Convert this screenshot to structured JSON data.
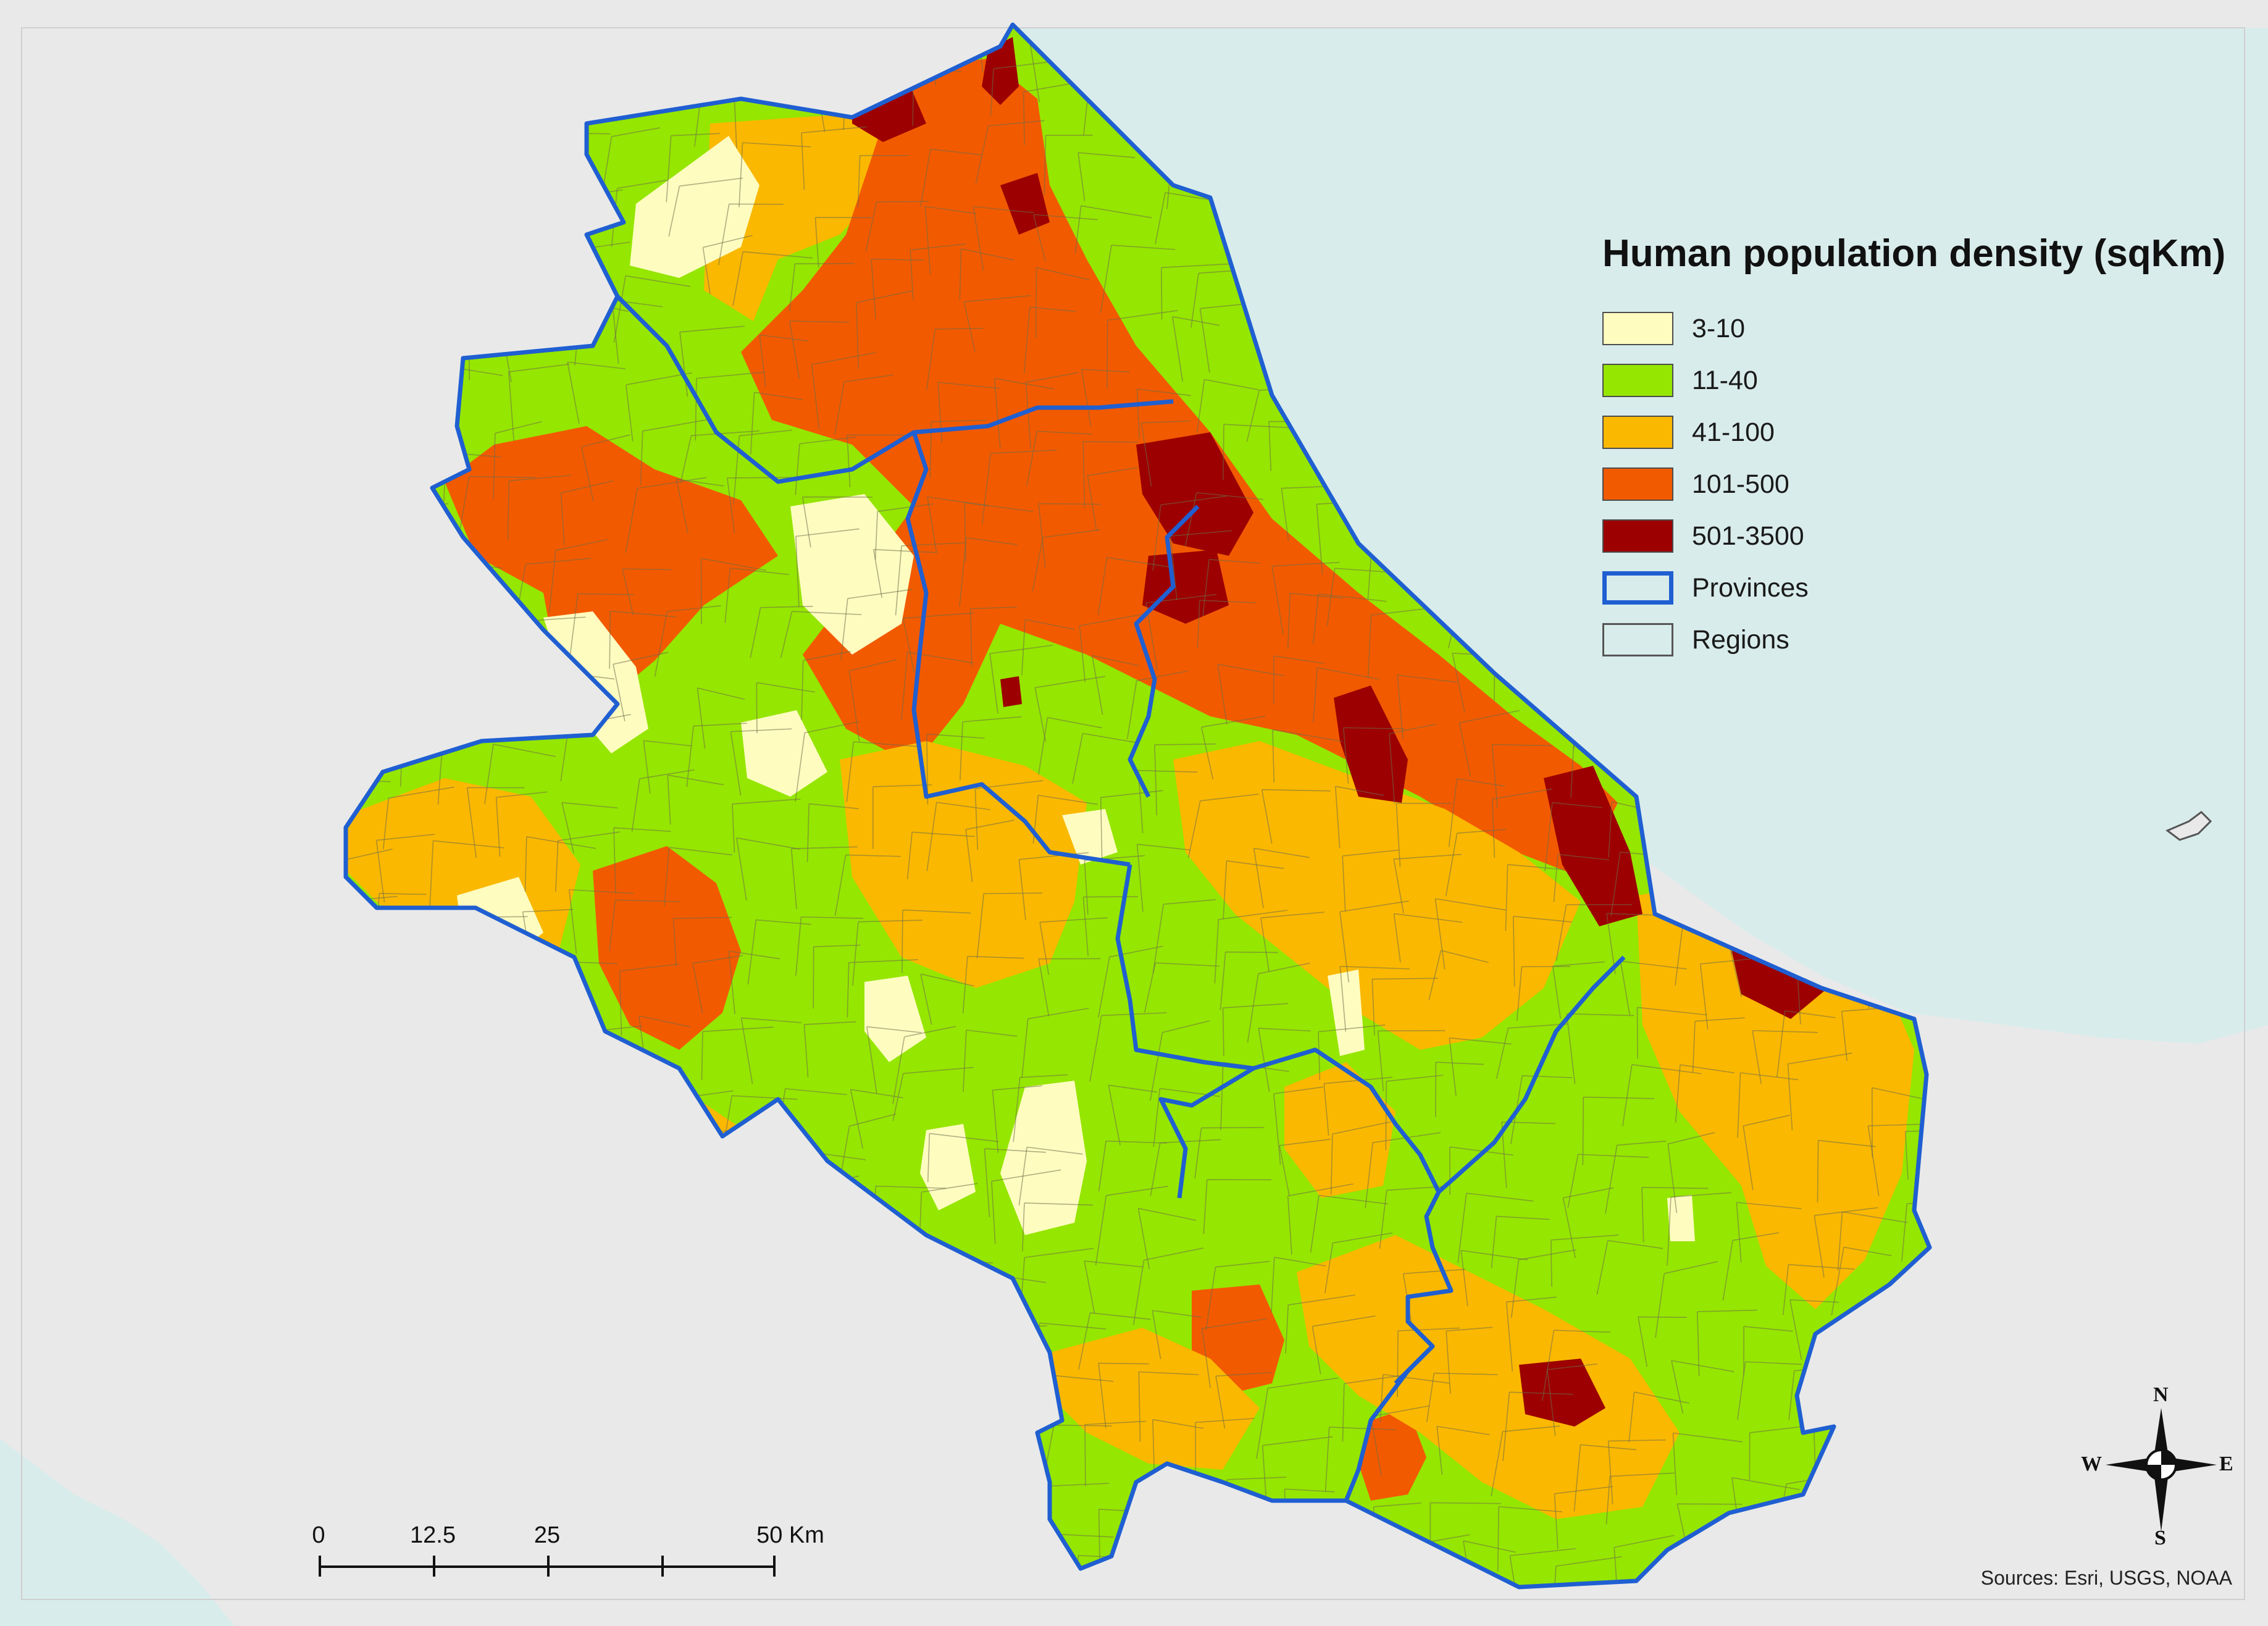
{
  "legend": {
    "title": "Human population density (sqKm)",
    "items": [
      {
        "label": "3-10",
        "color": "#fffcc0"
      },
      {
        "label": "11-40",
        "color": "#95e600"
      },
      {
        "label": "41-100",
        "color": "#fbb800"
      },
      {
        "label": "101-500",
        "color": "#f25a00"
      },
      {
        "label": "501-3500",
        "color": "#9c0000"
      },
      {
        "label": "Provinces",
        "color": "#1f5fd1"
      },
      {
        "label": "Regions",
        "color": "#555555"
      }
    ]
  },
  "scalebar": {
    "ticks": [
      "0",
      "12.5",
      "25",
      "50 Km"
    ]
  },
  "compass": {
    "n": "N",
    "s": "S",
    "e": "E",
    "w": "W"
  },
  "sources": "Sources: Esri, USGS, NOAA",
  "colors": {
    "sea": "#d8eceb",
    "land_relief": "#e7e7e7",
    "class_3_10": "#fffcc0",
    "class_11_40": "#95e600",
    "class_41_100": "#fbb800",
    "class_101_500": "#f25a00",
    "class_501_3500": "#9c0000",
    "province_border": "#1f5fd1",
    "region_border": "#555555"
  }
}
